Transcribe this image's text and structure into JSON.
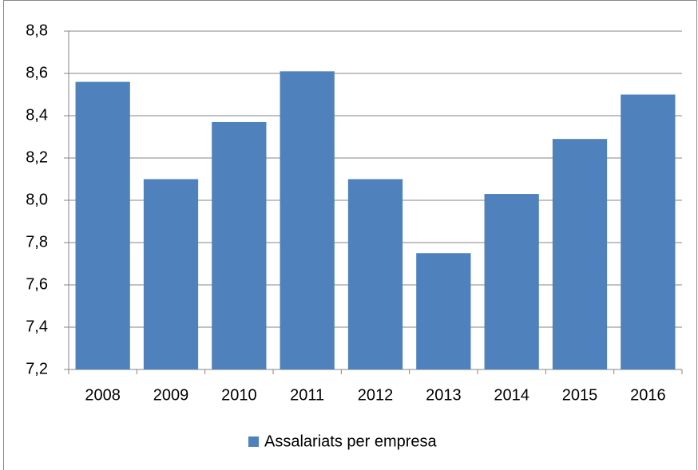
{
  "chart_data": {
    "type": "bar",
    "categories": [
      "2008",
      "2009",
      "2010",
      "2011",
      "2012",
      "2013",
      "2014",
      "2015",
      "2016"
    ],
    "series": [
      {
        "name": "Assalariats per empresa",
        "color": "#4f81bd",
        "values": [
          8.56,
          8.1,
          8.37,
          8.61,
          8.1,
          7.75,
          8.03,
          8.29,
          8.5
        ]
      }
    ],
    "ylim": [
      7.2,
      8.8
    ],
    "yticks": [
      {
        "value": 7.2,
        "label": "7,2"
      },
      {
        "value": 7.4,
        "label": "7,4"
      },
      {
        "value": 7.6,
        "label": "7,6"
      },
      {
        "value": 7.8,
        "label": "7,8"
      },
      {
        "value": 8.0,
        "label": "8,0"
      },
      {
        "value": 8.2,
        "label": "8,2"
      },
      {
        "value": 8.4,
        "label": "8,4"
      },
      {
        "value": 8.6,
        "label": "8,6"
      },
      {
        "value": 8.8,
        "label": "8,8"
      }
    ],
    "grid": true,
    "legend": "bottom"
  }
}
